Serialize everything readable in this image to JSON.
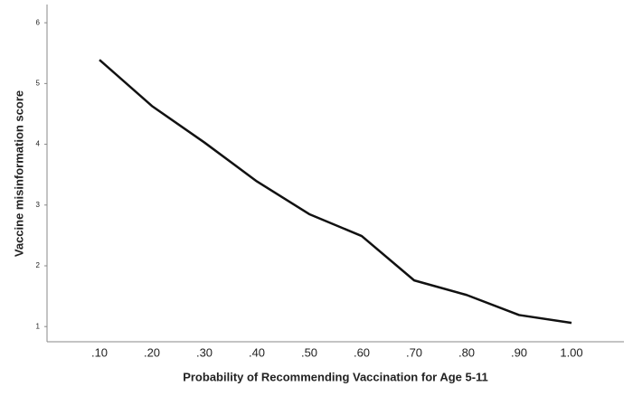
{
  "chart_data": {
    "type": "line",
    "x_label": "Probability of Recommending Vaccination for Age 5-11",
    "y_label": "Vaccine misinformation score",
    "categories": [
      ".10",
      ".20",
      ".30",
      ".40",
      ".50",
      ".60",
      ".70",
      ".80",
      ".90",
      "1.00"
    ],
    "values": [
      5.39,
      4.63,
      4.03,
      3.39,
      2.85,
      2.49,
      1.76,
      1.52,
      1.19,
      1.06
    ],
    "color": "#111111",
    "ylim": [
      0.75,
      6.3
    ],
    "yticks": [
      1,
      2,
      3,
      4,
      5,
      6
    ]
  }
}
